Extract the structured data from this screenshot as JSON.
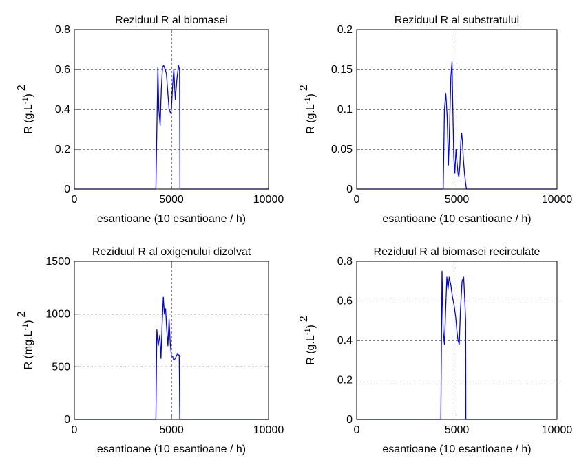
{
  "chart_data": [
    {
      "type": "line",
      "title": "Reziduul R al biomasei",
      "xlabel": "esantioane (10 esantioane / h)",
      "ylabel": "R (g.L^-1)^2",
      "ylabel_parts": {
        "pre": "R (g.L",
        "exp": "-1",
        "post": ")",
        "outer": "2"
      },
      "xlim": [
        0,
        10000
      ],
      "ylim": [
        0,
        0.8
      ],
      "xticks": [
        0,
        5000,
        10000
      ],
      "xticklabels": [
        "0",
        "5000",
        "10000"
      ],
      "yticks": [
        0,
        0.2,
        0.4,
        0.6,
        0.8
      ],
      "yticklabels": [
        "0",
        "0.2",
        "0.4",
        "0.6",
        "0.8"
      ],
      "grid": true,
      "vline": 5000,
      "line_color": "#0000ff",
      "series": [
        {
          "x": [
            0,
            4200,
            4300,
            4350,
            4420,
            4480,
            4540,
            4600,
            4680,
            4740,
            4800,
            4880,
            4960,
            5000,
            5060,
            5120,
            5200,
            5280,
            5360,
            5420,
            5440,
            10000
          ],
          "y": [
            0,
            0,
            0.61,
            0.4,
            0.32,
            0.5,
            0.61,
            0.62,
            0.6,
            0.58,
            0.5,
            0.4,
            0.38,
            0.4,
            0.52,
            0.6,
            0.45,
            0.55,
            0.62,
            0.6,
            0,
            0
          ]
        }
      ]
    },
    {
      "type": "line",
      "title": "Reziduul R al substratului",
      "xlabel": "esantioane (10 esantioane / h)",
      "ylabel": "R (g.L^-1)^2",
      "ylabel_parts": {
        "pre": "R (g.L",
        "exp": "-1",
        "post": ")",
        "outer": "2"
      },
      "xlim": [
        0,
        10000
      ],
      "ylim": [
        0,
        0.2
      ],
      "xticks": [
        0,
        5000,
        10000
      ],
      "xticklabels": [
        "0",
        "5000",
        "10000"
      ],
      "yticks": [
        0,
        0.05,
        0.1,
        0.15,
        0.2
      ],
      "yticklabels": [
        "0",
        "0.05",
        "0.1",
        "0.15",
        "0.2"
      ],
      "grid": true,
      "vline": 5000,
      "line_color": "#0000ff",
      "series": [
        {
          "x": [
            0,
            4320,
            4380,
            4450,
            4520,
            4580,
            4620,
            4660,
            4700,
            4760,
            4800,
            4850,
            4900,
            4960,
            5020,
            5060,
            5100,
            5150,
            5200,
            5240,
            5280,
            5320,
            5380,
            5450,
            5480,
            10000
          ],
          "y": [
            0,
            0,
            0.1,
            0.12,
            0.09,
            0.03,
            0.06,
            0.1,
            0.14,
            0.16,
            0.1,
            0.04,
            0.02,
            0.05,
            0.03,
            0.02,
            0.015,
            0.03,
            0.06,
            0.07,
            0.06,
            0.04,
            0.02,
            0.005,
            0,
            0
          ]
        }
      ]
    },
    {
      "type": "line",
      "title": "Reziduul R al oxigenului dizolvat",
      "xlabel": "esantioane (10 esantioane / h)",
      "ylabel": "R (mg.L^-1)^2",
      "ylabel_parts": {
        "pre": "R (mg.L",
        "exp": "-1",
        "post": ")",
        "outer": "2"
      },
      "xlim": [
        0,
        10000
      ],
      "ylim": [
        0,
        1500
      ],
      "xticks": [
        0,
        5000,
        10000
      ],
      "xticklabels": [
        "0",
        "5000",
        "10000"
      ],
      "yticks": [
        0,
        500,
        1000,
        1500
      ],
      "yticklabels": [
        "0",
        "500",
        "1000",
        "1500"
      ],
      "grid": true,
      "vline": 5000,
      "line_color": "#0000ff",
      "series": [
        {
          "x": [
            0,
            4200,
            4250,
            4320,
            4400,
            4460,
            4520,
            4580,
            4640,
            4700,
            4760,
            4820,
            4880,
            4940,
            5000,
            5060,
            5120,
            5200,
            5300,
            5400,
            5430,
            10000
          ],
          "y": [
            0,
            0,
            850,
            700,
            800,
            580,
            900,
            1160,
            1000,
            1050,
            850,
            700,
            950,
            720,
            600,
            600,
            560,
            580,
            620,
            610,
            0,
            0
          ]
        }
      ]
    },
    {
      "type": "line",
      "title": "Reziduul R al biomasei recirculate",
      "xlabel": "esantioane (10 esantioane / h)",
      "ylabel": "R (g.L^-1)^2",
      "ylabel_parts": {
        "pre": "R (g.L",
        "exp": "-1",
        "post": ")",
        "outer": "2"
      },
      "xlim": [
        0,
        10000
      ],
      "ylim": [
        0,
        0.8
      ],
      "xticks": [
        0,
        5000,
        10000
      ],
      "xticklabels": [
        "0",
        "5000",
        "10000"
      ],
      "yticks": [
        0,
        0.2,
        0.4,
        0.6,
        0.8
      ],
      "yticklabels": [
        "0",
        "0.2",
        "0.4",
        "0.6",
        "0.8"
      ],
      "grid": true,
      "vline": 5000,
      "line_color": "#0000ff",
      "series": [
        {
          "x": [
            0,
            4200,
            4260,
            4320,
            4380,
            4440,
            4500,
            4560,
            4620,
            4700,
            4780,
            4860,
            4940,
            5000,
            5060,
            5120,
            5180,
            5260,
            5340,
            5400,
            5440,
            5450,
            10000
          ],
          "y": [
            0,
            0,
            0.75,
            0.45,
            0.38,
            0.55,
            0.72,
            0.66,
            0.72,
            0.68,
            0.62,
            0.58,
            0.52,
            0.45,
            0.4,
            0.38,
            0.55,
            0.7,
            0.72,
            0.6,
            0.5,
            0,
            0
          ]
        }
      ]
    }
  ]
}
